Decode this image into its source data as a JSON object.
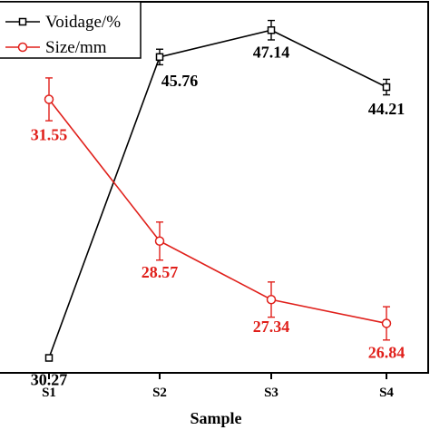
{
  "chart_data": {
    "type": "line",
    "xlabel": "Sample",
    "categories": [
      "S1",
      "S2",
      "S3",
      "S4"
    ],
    "grid": false,
    "legend_position": "top-left",
    "y_left_range": [
      29.5,
      48.6
    ],
    "y_right_range": [
      25.8,
      33.6
    ],
    "series": [
      {
        "name": "Voidage/%",
        "axis": "left",
        "color": "#000000",
        "marker": "square",
        "values": [
          30.27,
          45.76,
          47.14,
          44.21
        ],
        "errors": [
          0.15,
          0.4,
          0.5,
          0.4
        ],
        "labels": [
          "30.27",
          "45.76",
          "47.14",
          "44.21"
        ]
      },
      {
        "name": "Size/mm",
        "axis": "right",
        "color": "#e0201b",
        "marker": "circle",
        "values": [
          31.55,
          28.57,
          27.34,
          26.84
        ],
        "errors": [
          0.45,
          0.4,
          0.37,
          0.35
        ],
        "labels": [
          "31.55",
          "28.57",
          "27.34",
          "26.84"
        ]
      }
    ]
  }
}
